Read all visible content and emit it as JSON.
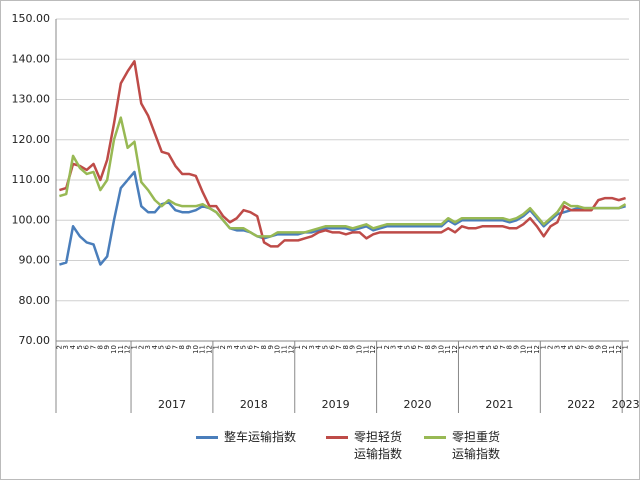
{
  "chart_data": {
    "type": "line",
    "categories": [
      "2",
      "3",
      "4",
      "5",
      "6",
      "7",
      "8",
      "9",
      "10",
      "11",
      "12",
      "1",
      "2",
      "3",
      "4",
      "5",
      "6",
      "7",
      "8",
      "9",
      "10",
      "11",
      "12",
      "1",
      "2",
      "3",
      "4",
      "5",
      "6",
      "7",
      "8",
      "9",
      "10",
      "11",
      "12",
      "1",
      "2",
      "3",
      "4",
      "5",
      "6",
      "7",
      "8",
      "9",
      "10",
      "11",
      "12",
      "1",
      "2",
      "3",
      "4",
      "5",
      "6",
      "7",
      "8",
      "9",
      "10",
      "11",
      "12",
      "1",
      "2",
      "3",
      "4",
      "5",
      "6",
      "7",
      "8",
      "9",
      "10",
      "11",
      "12",
      "1",
      "2",
      "3",
      "4",
      "5",
      "6",
      "7",
      "8",
      "9",
      "10",
      "11",
      "12",
      "1"
    ],
    "groups": [
      {
        "label": null,
        "months": 11
      },
      {
        "label": "2017",
        "months": 12
      },
      {
        "label": "2018",
        "months": 12
      },
      {
        "label": "2019",
        "months": 12
      },
      {
        "label": "2020",
        "months": 12
      },
      {
        "label": "2021",
        "months": 12
      },
      {
        "label": "2022",
        "months": 12
      },
      {
        "label": "2023",
        "months": 1
      }
    ],
    "series": [
      {
        "name": "整车运输指数",
        "color": "#4a7ebb",
        "values": [
          89,
          89.5,
          98.5,
          96,
          94.5,
          94,
          89,
          91,
          100,
          108,
          110,
          112,
          103.5,
          102,
          102,
          104,
          104.5,
          102.5,
          102,
          102,
          102.5,
          103.5,
          103,
          102,
          100,
          98,
          97.5,
          97.5,
          97,
          96,
          95.5,
          96,
          96.5,
          96.5,
          96.5,
          96.5,
          97,
          97,
          97.5,
          98,
          98,
          98,
          98,
          97.5,
          98,
          98.5,
          97.5,
          98,
          98.5,
          98.5,
          98.5,
          98.5,
          98.5,
          98.5,
          98.5,
          98.5,
          98.5,
          100,
          99,
          100,
          100,
          100,
          100,
          100,
          100,
          100,
          99.5,
          100,
          101,
          102.5,
          100.5,
          98.5,
          100,
          101.5,
          102,
          102.5,
          103,
          103,
          103,
          103,
          103,
          103,
          103,
          103.5
        ]
      },
      {
        "name": "零担轻货运输指数",
        "color": "#be4b48",
        "values": [
          107.5,
          108,
          114,
          113.5,
          112.5,
          114,
          110,
          115,
          124,
          134,
          137,
          139.5,
          129,
          126,
          121.5,
          117,
          116.5,
          113.5,
          111.5,
          111.5,
          111,
          107,
          103.5,
          103.5,
          101,
          99.5,
          100.5,
          102.5,
          102,
          101,
          94.5,
          93.5,
          93.5,
          95,
          95,
          95,
          95.5,
          96,
          97,
          97.5,
          97,
          97,
          96.5,
          97,
          97,
          95.5,
          96.5,
          97,
          97,
          97,
          97,
          97,
          97,
          97,
          97,
          97,
          97,
          98,
          97,
          98.5,
          98,
          98,
          98.5,
          98.5,
          98.5,
          98.5,
          98,
          98,
          99,
          100.5,
          98.5,
          96,
          98.5,
          99.5,
          103.5,
          102.5,
          102.5,
          102.5,
          102.5,
          105,
          105.5,
          105.5,
          105,
          105.5
        ]
      },
      {
        "name": "零担重货运输指数",
        "color": "#98b954",
        "values": [
          106,
          106.5,
          116,
          113,
          111.5,
          112,
          107.5,
          110,
          120,
          125.5,
          118,
          119.5,
          109.5,
          107.5,
          105,
          103.5,
          105,
          104,
          103.5,
          103.5,
          103.5,
          104,
          103,
          102,
          100,
          98,
          98,
          98,
          97,
          96,
          96,
          96,
          97,
          97,
          97,
          97,
          97,
          97.5,
          98,
          98.5,
          98.5,
          98.5,
          98.5,
          98,
          98.5,
          99,
          98,
          98.5,
          99,
          99,
          99,
          99,
          99,
          99,
          99,
          99,
          99,
          100.5,
          99.5,
          100.5,
          100.5,
          100.5,
          100.5,
          100.5,
          100.5,
          100.5,
          100,
          100.5,
          101.5,
          103,
          101,
          99,
          100.5,
          102,
          104.5,
          103.5,
          103.5,
          103,
          103,
          103,
          103,
          103,
          103,
          104
        ]
      }
    ],
    "ylim": [
      70,
      150
    ],
    "yticks": [
      {
        "value": 70,
        "label": "70.00"
      },
      {
        "value": 80,
        "label": "80.00"
      },
      {
        "value": 90,
        "label": "90.00"
      },
      {
        "value": 100,
        "label": "100.00"
      },
      {
        "value": 110,
        "label": "110.00"
      },
      {
        "value": 120,
        "label": "120.00"
      },
      {
        "value": 130,
        "label": "130.00"
      },
      {
        "value": 140,
        "label": "140.00"
      },
      {
        "value": 150,
        "label": "150.00"
      }
    ],
    "grid": true
  }
}
